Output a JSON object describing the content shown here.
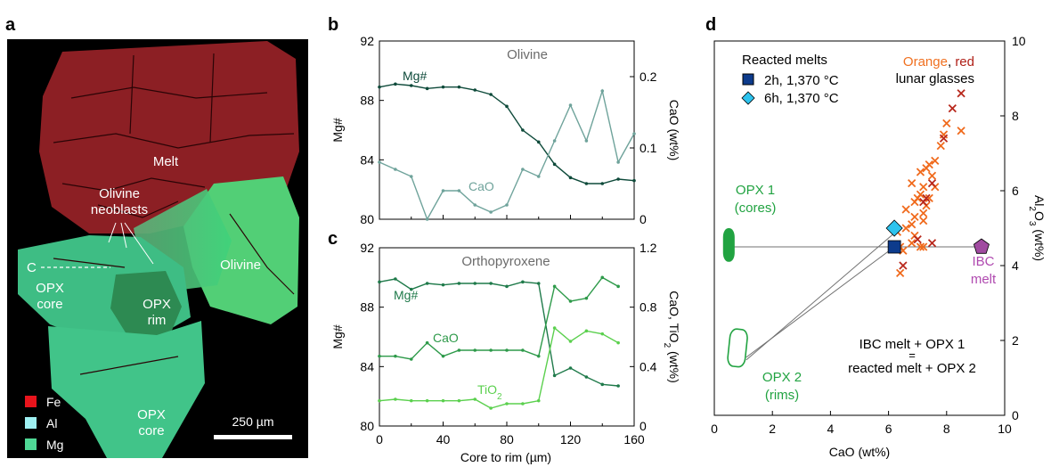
{
  "panel_labels": {
    "a": "a",
    "b": "b",
    "c": "c",
    "d": "d"
  },
  "panel_a": {
    "labels": {
      "melt": "Melt",
      "olivine_neoblasts_1": "Olivine",
      "olivine_neoblasts_2": "neoblasts",
      "olivine": "Olivine",
      "c_marker": "C",
      "opx_core_1_a": "OPX",
      "opx_core_1_b": "core",
      "opx_rim_a": "OPX",
      "opx_rim_b": "rim",
      "opx_core_2_a": "OPX",
      "opx_core_2_b": "core"
    },
    "legend": [
      {
        "label": "Fe",
        "color": "#e8141c"
      },
      {
        "label": "Al",
        "color": "#9ef0f2"
      },
      {
        "label": "Mg",
        "color": "#4fd896"
      }
    ],
    "scale_bar": "250 µm"
  },
  "chart_data": [
    {
      "panel": "b",
      "type": "line",
      "title": "Olivine",
      "ylabel": "Mg#",
      "y2label": "CaO (wt%)",
      "xlim": [
        0,
        160
      ],
      "ylim": [
        80,
        92
      ],
      "y2lim": [
        0,
        0.25
      ],
      "yticks": [
        "80",
        "84",
        "88",
        "92"
      ],
      "y2ticks": [
        "0",
        "0.1",
        "0.2"
      ],
      "series": [
        {
          "name": "Mg#",
          "axis": "left",
          "color": "#0e4a3a",
          "x": [
            0,
            10,
            20,
            30,
            40,
            50,
            60,
            70,
            80,
            90,
            100,
            110,
            120,
            130,
            140,
            150,
            160
          ],
          "y": [
            88.9,
            89.1,
            89.0,
            88.8,
            88.9,
            88.9,
            88.7,
            88.4,
            87.6,
            86.0,
            85.2,
            83.7,
            82.8,
            82.4,
            82.4,
            82.7,
            82.6
          ]
        },
        {
          "name": "CaO",
          "axis": "right",
          "color": "#6fa39b",
          "x": [
            0,
            10,
            20,
            30,
            40,
            50,
            60,
            70,
            80,
            90,
            100,
            110,
            120,
            130,
            140,
            150,
            160
          ],
          "y": [
            0.08,
            0.07,
            0.06,
            0.0,
            0.04,
            0.04,
            0.02,
            0.01,
            0.02,
            0.07,
            0.06,
            0.11,
            0.16,
            0.11,
            0.18,
            0.08,
            0.12
          ]
        }
      ]
    },
    {
      "panel": "c",
      "type": "line",
      "title": "Orthopyroxene",
      "xlabel": "Core to rim (µm)",
      "ylabel": "Mg#",
      "y2label_main": "CaO, TiO",
      "y2label_sub": "2",
      "y2label_tail": " (wt%)",
      "xlim": [
        0,
        160
      ],
      "ylim": [
        80,
        92
      ],
      "y2lim": [
        0,
        1.2
      ],
      "xticks": [
        "0",
        "40",
        "80",
        "120",
        "160"
      ],
      "yticks": [
        "80",
        "84",
        "88",
        "92"
      ],
      "y2ticks": [
        "0",
        "0.4",
        "0.8",
        "1.2"
      ],
      "series": [
        {
          "name": "Mg#",
          "axis": "left",
          "color": "#1f7a4a",
          "x": [
            0,
            10,
            20,
            30,
            40,
            50,
            60,
            70,
            80,
            90,
            100,
            110,
            120,
            130,
            140,
            150
          ],
          "y": [
            89.7,
            89.9,
            89.2,
            89.6,
            89.5,
            89.6,
            89.6,
            89.6,
            89.4,
            89.7,
            89.6,
            83.4,
            83.9,
            83.3,
            82.8,
            82.7
          ]
        },
        {
          "name": "CaO",
          "axis": "right",
          "color": "#2e9a4a",
          "x": [
            0,
            10,
            20,
            30,
            40,
            50,
            60,
            70,
            80,
            90,
            100,
            110,
            120,
            130,
            140,
            150
          ],
          "y": [
            0.47,
            0.47,
            0.45,
            0.56,
            0.47,
            0.51,
            0.51,
            0.51,
            0.51,
            0.51,
            0.47,
            0.94,
            0.84,
            0.86,
            1.0,
            0.94
          ]
        },
        {
          "name": "TiO",
          "name_sub": "2",
          "axis": "right",
          "color": "#5bd04e",
          "x": [
            0,
            10,
            20,
            30,
            40,
            50,
            60,
            70,
            80,
            90,
            100,
            110,
            120,
            130,
            140,
            150
          ],
          "y": [
            0.17,
            0.18,
            0.17,
            0.17,
            0.17,
            0.17,
            0.18,
            0.12,
            0.15,
            0.15,
            0.17,
            0.66,
            0.57,
            0.64,
            0.62,
            0.56
          ]
        }
      ]
    },
    {
      "panel": "d",
      "type": "scatter",
      "xlabel": "CaO (wt%)",
      "y2label_pre": "Al",
      "y2label_sub1": "2",
      "y2label_mid": "O",
      "y2label_sub2": "3",
      "y2label_post": " (wt%)",
      "xlim": [
        0,
        10
      ],
      "ylim": [
        0,
        10
      ],
      "xticks": [
        "0",
        "2",
        "4",
        "6",
        "8",
        "10"
      ],
      "yticks": [
        "0",
        "2",
        "4",
        "6",
        "8",
        "10"
      ],
      "legend": {
        "title": "Reacted melts",
        "items": [
          {
            "label": "2h, 1,370 °C",
            "marker": "square",
            "color": "#0d3b8c"
          },
          {
            "label": "6h, 1,370 °C",
            "marker": "diamond",
            "color": "#2dc3ee"
          }
        ]
      },
      "lunar_label": {
        "orange": "Orange",
        "sep": ", ",
        "red": "red",
        "rest": "lunar glasses",
        "orange_color": "#f07020",
        "red_color": "#b02018"
      },
      "lunar_glasses_red": {
        "color": "#b8281c",
        "x": [
          8.5,
          8.2,
          7.9,
          7.5,
          7.3,
          7.2,
          7.5,
          7.0,
          6.5
        ],
        "y": [
          8.6,
          8.2,
          7.4,
          6.2,
          5.8,
          5.7,
          4.6,
          4.7,
          4.0
        ]
      },
      "lunar_glasses_orange": {
        "color": "#f06a1c",
        "x": [
          8.0,
          8.5,
          7.9,
          7.8,
          7.6,
          7.4,
          7.3,
          7.1,
          7.5,
          6.8,
          7.2,
          7.6,
          7.1,
          7.0,
          7.4,
          6.9,
          7.3,
          6.6,
          7.2,
          6.9,
          7.2,
          6.8,
          6.6,
          6.3,
          6.9,
          6.8,
          6.4,
          6.5,
          7.1,
          7.2,
          6.4
        ],
        "y": [
          7.8,
          7.6,
          7.5,
          7.2,
          6.8,
          6.7,
          6.6,
          6.5,
          6.4,
          6.2,
          6.1,
          6.1,
          5.9,
          5.8,
          5.8,
          5.7,
          5.6,
          5.5,
          5.4,
          5.3,
          5.2,
          5.1,
          5.0,
          4.9,
          4.8,
          4.6,
          4.5,
          4.4,
          4.5,
          4.5,
          3.8
        ]
      },
      "reacted_2h": {
        "x": 6.2,
        "y": 4.5
      },
      "reacted_6h": {
        "x": 6.2,
        "y": 5.0
      },
      "ibc_melt": {
        "x": 9.2,
        "y": 4.5,
        "color": "#a04aa0",
        "label_1": "IBC",
        "label_2": "melt",
        "label_color": "#b04ab0"
      },
      "opx1": {
        "x_range": [
          0.3,
          0.7
        ],
        "y_range": [
          4.1,
          5.0
        ],
        "label_1": "OPX 1",
        "label_2": "(cores)",
        "color": "#21a341"
      },
      "opx2": {
        "x_range": [
          0.5,
          1.1
        ],
        "y_range": [
          1.3,
          2.3
        ],
        "label_1": "OPX 2",
        "label_2": "(rims)",
        "color": "#21a341"
      },
      "mixing_note": {
        "line_1": "IBC melt + OPX 1",
        "line_2": "=",
        "line_3": "reacted melt + OPX 2"
      }
    }
  ]
}
